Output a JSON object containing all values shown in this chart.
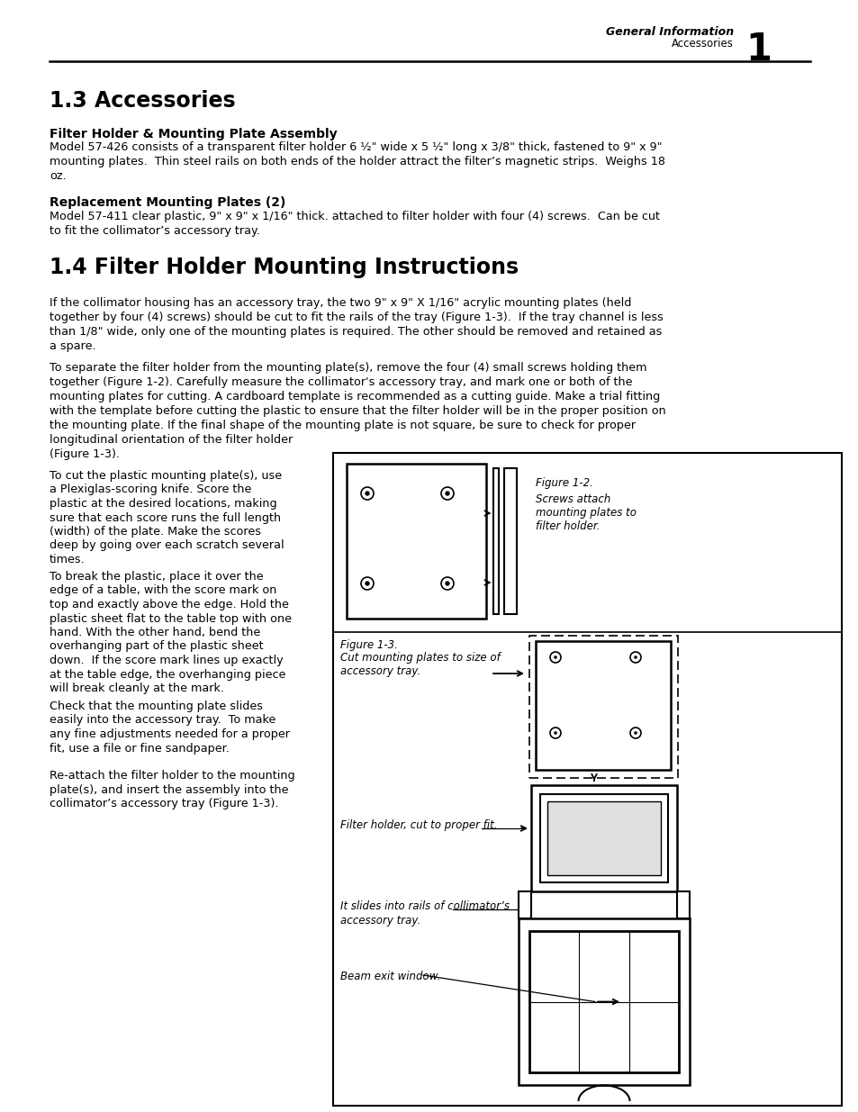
{
  "page_bg": "#ffffff",
  "header_section_text": "General Information",
  "header_sub_text": "Accessories",
  "header_page_num": "1",
  "section_13_title": "1.3 Accessories",
  "sub1_title": "Filter Holder & Mounting Plate Assembly",
  "sub1_body": "Model 57-426 consists of a transparent filter holder 6 ½\" wide x 5 ½\" long x 3/8\" thick, fastened to 9\" x 9\"\nmounting plates.  Thin steel rails on both ends of the holder attract the filter’s magnetic strips.  Weighs 18\noz.",
  "sub2_title": "Replacement Mounting Plates (2)",
  "sub2_body": "Model 57-411 clear plastic, 9\" x 9\" x 1/16\" thick. attached to filter holder with four (4) screws.  Can be cut\nto fit the collimator’s accessory tray.",
  "section_14_title": "1.4 Filter Holder Mounting Instructions",
  "para1": "If the collimator housing has an accessory tray, the two 9\" x 9\" X 1/16\" acrylic mounting plates (held\ntogether by four (4) screws) should be cut to fit the rails of the tray (Figure 1-3).  If the tray channel is less\nthan 1/8\" wide, only one of the mounting plates is required. The other should be removed and retained as\na spare.",
  "para2": "To separate the filter holder from the mounting plate(s), remove the four (4) small screws holding them\ntogether (Figure 1-2). Carefully measure the collimator's accessory tray, and mark one or both of the\nmounting plates for cutting. A cardboard template is recommended as a cutting guide. Make a trial fitting\nwith the template before cutting the plastic to ensure that the filter holder will be in the proper position on\nthe mounting plate. If the final shape of the mounting plate is not square, be sure to check for proper\nlongitudinal orientation of the filter holder\n(Figure 1-3).",
  "para3": "To cut the plastic mounting plate(s), use\na Plexiglas-scoring knife. Score the\nplastic at the desired locations, making\nsure that each score runs the full length\n(width) of the plate. Make the scores\ndeep by going over each scratch several\ntimes.",
  "para4": "To break the plastic, place it over the\nedge of a table, with the score mark on\ntop and exactly above the edge. Hold the\nplastic sheet flat to the table top with one\nhand. With the other hand, bend the\noverhanging part of the plastic sheet\ndown.  If the score mark lines up exactly\nat the table edge, the overhanging piece\nwill break cleanly at the mark.",
  "para5": "Check that the mounting plate slides\neasily into the accessory tray.  To make\nany fine adjustments needed for a proper\nfit, use a file or fine sandpaper.",
  "para6": "Re-attach the filter holder to the mounting\nplate(s), and insert the assembly into the\ncollimator’s accessory tray (Figure 1-3).",
  "fig12_caption": "Figure 1-2.\nScrews attach\nmounting plates to\nfilter holder.",
  "fig13_caption": "Figure 1-3.\nCut mounting plates to size of\naccessory tray.",
  "fig_label2": "Filter holder, cut to proper fit.",
  "fig_label3": "It slides into rails of collimator’s\naccessory tray.",
  "fig_label4": "Beam exit window."
}
